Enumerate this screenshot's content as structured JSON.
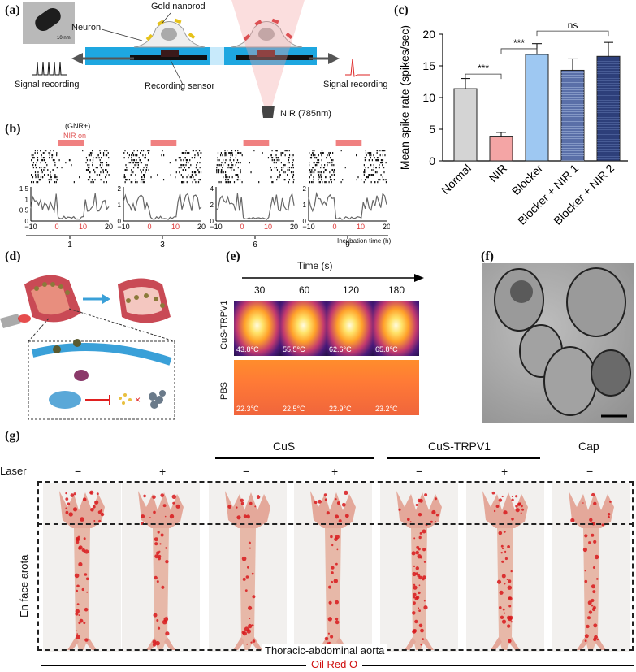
{
  "panels": {
    "a": "(a)",
    "b": "(b)",
    "c": "(c)",
    "d": "(d)",
    "e": "(e)",
    "f": "(f)",
    "g": "(g)"
  },
  "panel_a": {
    "neuron": "Neuron",
    "gold_nanorod": "Gold nanorod",
    "recording_sensor": "Recording sensor",
    "signal_left": "Signal recording",
    "signal_right": "Signal recording",
    "nir": "NIR (785nm)",
    "scale": "10 nm"
  },
  "panel_b": {
    "gnr": "(GNR+)",
    "nir_on": "NIR on",
    "incubation_label": "Incubation time (h)",
    "incubation_ticks": [
      "1",
      "3",
      "6",
      "9"
    ],
    "x_ticks": [
      "−10",
      "0",
      "10",
      "20"
    ],
    "y_ticks": [
      [
        "1.5",
        "1",
        "0.5",
        "0"
      ],
      [
        "2",
        "1",
        "0"
      ],
      [
        "4",
        "2",
        "0"
      ],
      [
        "2",
        "1",
        "0"
      ]
    ]
  },
  "chart_data": {
    "type": "bar",
    "ylabel": "Mean spike rate (spikes/sec)",
    "ylim": [
      0,
      20
    ],
    "yticks": [
      0,
      5,
      10,
      15,
      20
    ],
    "categories": [
      "Normal",
      "NIR",
      "Blocker",
      "Blocker + NIR 1",
      "Blocker + NIR 2"
    ],
    "values": [
      11.4,
      3.9,
      16.8,
      14.3,
      16.5
    ],
    "errors": [
      1.6,
      0.6,
      1.7,
      1.8,
      2.2
    ],
    "colors": [
      "#d4d4d4",
      "#f4a5a5",
      "#9ec8f2",
      "#5a6fa8",
      "#2d3f7a"
    ],
    "significance": [
      {
        "between": [
          0,
          1
        ],
        "label": "***"
      },
      {
        "between": [
          1,
          2
        ],
        "label": "***"
      },
      {
        "between": [
          2,
          4
        ],
        "label": "ns"
      }
    ]
  },
  "panel_e": {
    "time_label": "Time (s)",
    "times": [
      "30",
      "60",
      "120",
      "180"
    ],
    "row1": "CuS-TRPV1",
    "row2": "PBS",
    "temps_row1": [
      "43.8°C",
      "55.5°C",
      "62.6°C",
      "65.8°C"
    ],
    "temps_row2": [
      "22.3°C",
      "22.5°C",
      "22.9°C",
      "23.2°C"
    ]
  },
  "panel_g": {
    "laser_label": "Laser",
    "laser_states": [
      "−",
      "+",
      "−",
      "+",
      "−",
      "+",
      "−"
    ],
    "group_cus": "CuS",
    "group_cus_trpv1": "CuS-TRPV1",
    "group_cap": "Cap",
    "side_label": "En face arota",
    "bottom_label": "Thoracic-abdominal aorta",
    "stain": "Oil Red O"
  }
}
